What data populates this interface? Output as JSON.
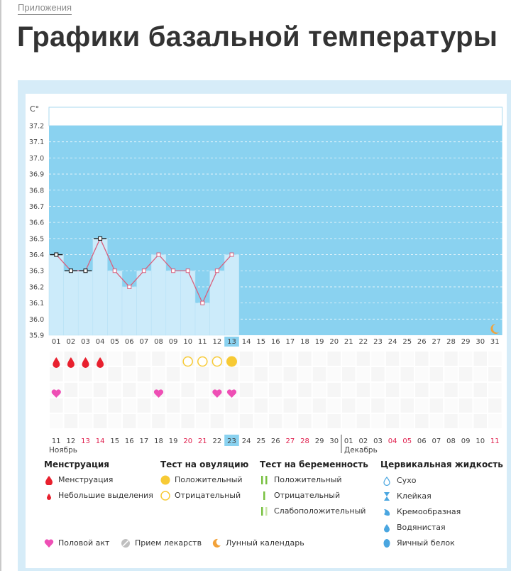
{
  "breadcrumb": "Приложения",
  "title": "Графики базальной температуры",
  "colors": {
    "chart_bg": "#8ad2f0",
    "bar": "#ccebfa",
    "line": "#d9607d",
    "axis_text": "#444",
    "weekend": "#e0204e",
    "today": "#8ad2f0",
    "menstruation": "#e8202e",
    "heart": "#ee4fb5",
    "ovulation": "#f7ca35"
  },
  "chart_data": {
    "type": "line",
    "ylabel": "C°",
    "ylim": [
      35.9,
      37.2
    ],
    "yticks": [
      "37.2",
      "37.1",
      "37.0",
      "36.9",
      "36.8",
      "36.7",
      "36.6",
      "36.5",
      "36.4",
      "36.3",
      "36.2",
      "36.1",
      "36.0",
      "35.9"
    ],
    "cycle_days": [
      "01",
      "02",
      "03",
      "04",
      "05",
      "06",
      "07",
      "08",
      "09",
      "10",
      "11",
      "12",
      "13",
      "14",
      "15",
      "16",
      "17",
      "18",
      "19",
      "20",
      "21",
      "22",
      "23",
      "24",
      "25",
      "26",
      "27",
      "28",
      "29",
      "30",
      "31"
    ],
    "today_index": 12,
    "temperatures": [
      36.4,
      36.3,
      36.3,
      36.5,
      36.3,
      36.2,
      36.3,
      36.4,
      36.3,
      36.3,
      36.1,
      36.3,
      36.4
    ],
    "black_marker_days": [
      "01",
      "02",
      "03",
      "04"
    ],
    "menstruation_days": [
      "01",
      "02",
      "03",
      "04"
    ],
    "ovulation_test": {
      "negative_days": [
        "10",
        "11",
        "12"
      ],
      "positive_days": [
        "13"
      ]
    },
    "intercourse_days": [
      "01",
      "08",
      "12",
      "13"
    ],
    "moon_day": "31",
    "dates": [
      "11",
      "12",
      "13",
      "14",
      "15",
      "16",
      "17",
      "18",
      "19",
      "20",
      "21",
      "22",
      "23",
      "24",
      "25",
      "26",
      "27",
      "28",
      "29",
      "30",
      "01",
      "02",
      "03",
      "04",
      "05",
      "06",
      "07",
      "08",
      "09",
      "10",
      "11"
    ],
    "weekend_dates_index": [
      2,
      3,
      9,
      10,
      16,
      17,
      23,
      24,
      30
    ],
    "month_labels": [
      {
        "label": "Ноябрь",
        "index": 0
      },
      {
        "label": "Декабрь",
        "index": 20
      }
    ]
  },
  "legend": {
    "menstruation": {
      "title": "Менструация",
      "items": [
        "Менструация",
        "Небольшие выделения"
      ]
    },
    "ovulation": {
      "title": "Тест на овуляцию",
      "items": [
        "Положительный",
        "Отрицательный"
      ]
    },
    "pregnancy": {
      "title": "Тест на беременность",
      "items": [
        "Положительный",
        "Отрицательный",
        "Слабоположительный"
      ]
    },
    "cervical": {
      "title": "Цервикальная жидкость",
      "items": [
        "Сухо",
        "Клейкая",
        "Кремообразная",
        "Водянистая",
        "Яичный белок"
      ]
    },
    "bottom": [
      "Половой акт",
      "Прием лекарств",
      "Лунный календарь"
    ]
  }
}
